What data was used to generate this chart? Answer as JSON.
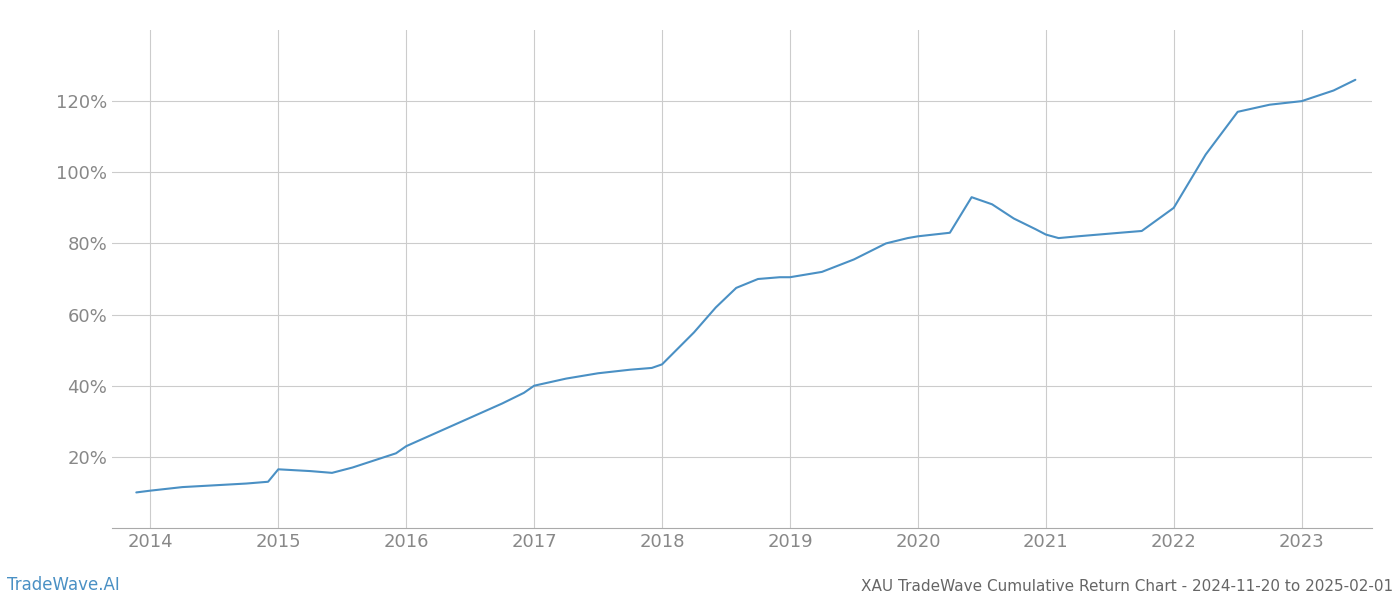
{
  "title": "XAU TradeWave Cumulative Return Chart - 2024-11-20 to 2025-02-01",
  "watermark": "TradeWave.AI",
  "line_color": "#4a90c4",
  "background_color": "#ffffff",
  "grid_color": "#cccccc",
  "x_years": [
    2014,
    2015,
    2016,
    2017,
    2018,
    2019,
    2020,
    2021,
    2022,
    2023
  ],
  "x_data": [
    2013.89,
    2014.0,
    2014.25,
    2014.5,
    2014.75,
    2014.92,
    2015.0,
    2015.25,
    2015.42,
    2015.58,
    2015.75,
    2015.92,
    2016.0,
    2016.25,
    2016.5,
    2016.75,
    2016.92,
    2017.0,
    2017.25,
    2017.5,
    2017.75,
    2017.92,
    2018.0,
    2018.25,
    2018.42,
    2018.58,
    2018.75,
    2018.92,
    2019.0,
    2019.25,
    2019.5,
    2019.75,
    2019.92,
    2020.0,
    2020.25,
    2020.42,
    2020.58,
    2020.75,
    2020.92,
    2021.0,
    2021.1,
    2021.25,
    2021.58,
    2021.75,
    2022.0,
    2022.25,
    2022.5,
    2022.75,
    2023.0,
    2023.25,
    2023.42
  ],
  "y_data": [
    10,
    10.5,
    11.5,
    12.0,
    12.5,
    13.0,
    16.5,
    16.0,
    15.5,
    17.0,
    19.0,
    21.0,
    23.0,
    27.0,
    31.0,
    35.0,
    38.0,
    40.0,
    42.0,
    43.5,
    44.5,
    45.0,
    46.0,
    55.0,
    62.0,
    67.5,
    70.0,
    70.5,
    70.5,
    72.0,
    75.5,
    80.0,
    81.5,
    82.0,
    83.0,
    93.0,
    91.0,
    87.0,
    84.0,
    82.5,
    81.5,
    82.0,
    83.0,
    83.5,
    90.0,
    105.0,
    117.0,
    119.0,
    120.0,
    123.0,
    126.0
  ],
  "ylim": [
    0,
    140
  ],
  "yticks": [
    20,
    40,
    60,
    80,
    100,
    120
  ],
  "xlim": [
    2013.7,
    2023.55
  ],
  "title_color": "#666666",
  "watermark_color": "#4a90c4",
  "tick_color": "#888888",
  "line_width": 1.5,
  "title_fontsize": 11,
  "tick_fontsize": 13,
  "watermark_fontsize": 12
}
